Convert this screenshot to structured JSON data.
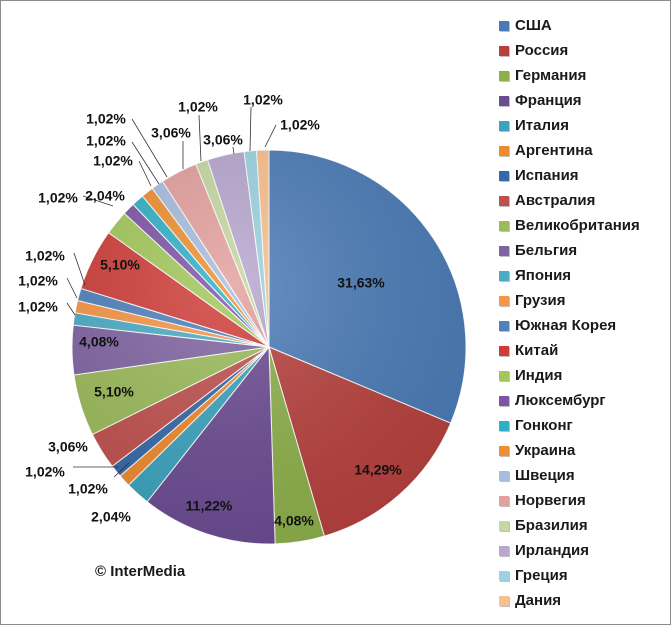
{
  "chart_data": {
    "type": "pie",
    "title": "",
    "legend_position": "right",
    "slices": [
      {
        "label": "США",
        "value": 31.63,
        "display": "31,63%",
        "color": "#4a7bb7"
      },
      {
        "label": "Россия",
        "value": 14.29,
        "display": "14,29%",
        "color": "#b7403d"
      },
      {
        "label": "Германия",
        "value": 4.08,
        "display": "4,08%",
        "color": "#8db04a"
      },
      {
        "label": "Франция",
        "value": 11.22,
        "display": "11,22%",
        "color": "#6b4b92"
      },
      {
        "label": "Италия",
        "value": 2.04,
        "display": "2,04%",
        "color": "#3aa3be"
      },
      {
        "label": "Аргентина",
        "value": 1.02,
        "display": "1,02%",
        "color": "#f08a2c"
      },
      {
        "label": "Испания",
        "value": 1.02,
        "display": "1,02%",
        "color": "#3568a8"
      },
      {
        "label": "Австралия",
        "value": 3.06,
        "display": "3,06%",
        "color": "#c0504d"
      },
      {
        "label": "Великобритания",
        "value": 5.1,
        "display": "5,10%",
        "color": "#9bbb59"
      },
      {
        "label": "Бельгия",
        "value": 4.08,
        "display": "4,08%",
        "color": "#8064a2"
      },
      {
        "label": "Япония",
        "value": 1.02,
        "display": "1,02%",
        "color": "#4bacc6"
      },
      {
        "label": "Грузия",
        "value": 1.02,
        "display": "1,02%",
        "color": "#f79646"
      },
      {
        "label": "Южная Корея",
        "value": 1.02,
        "display": "1,02%",
        "color": "#4f81bd"
      },
      {
        "label": "Китай",
        "value": 5.1,
        "display": "5,10%",
        "color": "#d03c38"
      },
      {
        "label": "Индия",
        "value": 2.04,
        "display": "2,04%",
        "color": "#a3c85a"
      },
      {
        "label": "Люксембург",
        "value": 1.02,
        "display": "1,02%",
        "color": "#7d54a8"
      },
      {
        "label": "Гонконг",
        "value": 1.02,
        "display": "1,02%",
        "color": "#2fb0c8"
      },
      {
        "label": "Украина",
        "value": 1.02,
        "display": "1,02%",
        "color": "#ef8f30"
      },
      {
        "label": "Швеция",
        "value": 1.02,
        "display": "1,02%",
        "color": "#a6bde0"
      },
      {
        "label": "Норвегия",
        "value": 3.06,
        "display": "3,06%",
        "color": "#e3a09d"
      },
      {
        "label": "Бразилия",
        "value": 1.02,
        "display": "1,02%",
        "color": "#c5d8a2"
      },
      {
        "label": "Ирландия",
        "value": 3.06,
        "display": "3,06%",
        "color": "#b8a7cf"
      },
      {
        "label": "Греция",
        "value": 1.02,
        "display": "1,02%",
        "color": "#9bd3e2"
      },
      {
        "label": "Дания",
        "value": 1.02,
        "display": "1,02%",
        "color": "#f9c08e"
      }
    ]
  },
  "copyright": "© InterMedia"
}
